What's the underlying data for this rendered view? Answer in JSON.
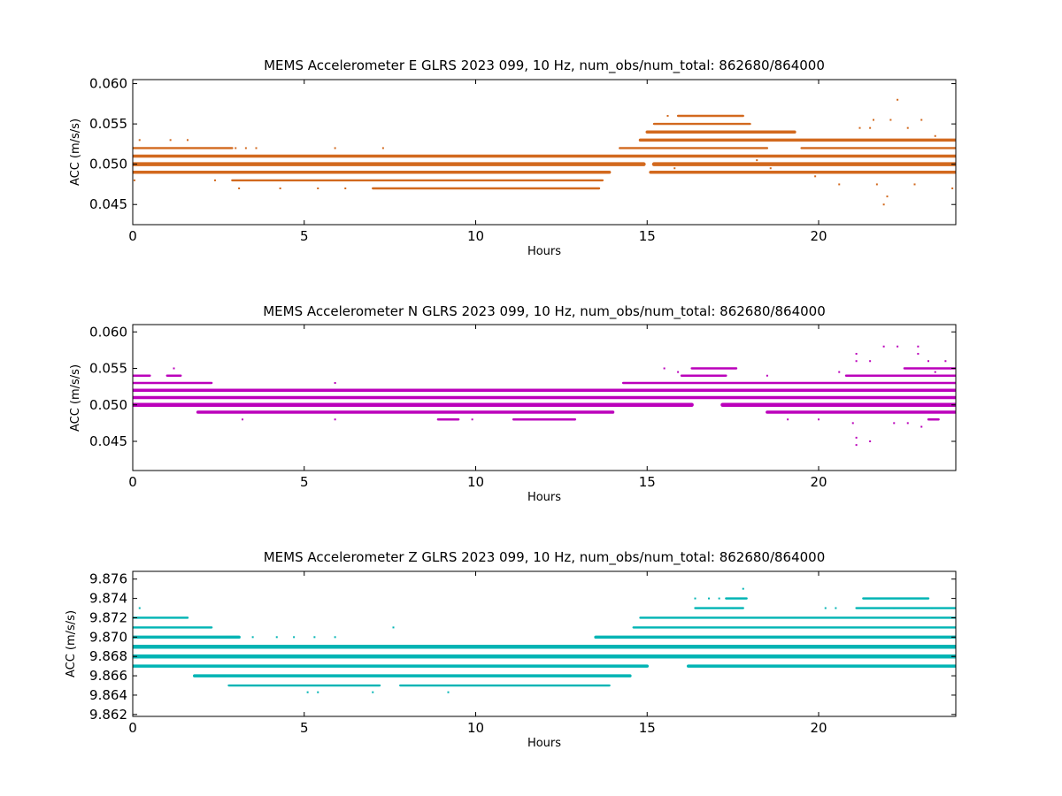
{
  "chart_data": [
    {
      "type": "scatter",
      "title": "MEMS Accelerometer E GLRS 2023 099, 10 Hz, num_obs/num_total: 862680/864000",
      "xlabel": "Hours",
      "ylabel": "ACC (m/s/s)",
      "xlim": [
        0,
        24
      ],
      "ylim": [
        0.0425,
        0.0605
      ],
      "xticks": [
        "0",
        "5",
        "10",
        "15",
        "20"
      ],
      "yticks": [
        "0.045",
        "0.050",
        "0.055",
        "0.060"
      ],
      "grid": false,
      "color": "#d2691e",
      "series": [
        {
          "bands": [
            {
              "y": 0.052,
              "segments": [
                [
                  0,
                  2.9
                ],
                [
                  14.2,
                  18.5
                ],
                [
                  19.5,
                  24
                ]
              ],
              "weight": 1
            },
            {
              "y": 0.051,
              "segments": [
                [
                  0,
                  24
                ]
              ],
              "weight": 2
            },
            {
              "y": 0.05,
              "segments": [
                [
                  0,
                  14.9
                ],
                [
                  15.2,
                  24
                ]
              ],
              "weight": 3
            },
            {
              "y": 0.049,
              "segments": [
                [
                  0,
                  13.9
                ],
                [
                  15.1,
                  24
                ]
              ],
              "weight": 2
            },
            {
              "y": 0.048,
              "segments": [
                [
                  2.9,
                  13.7
                ]
              ],
              "weight": 1
            },
            {
              "y": 0.047,
              "segments": [
                [
                  7.0,
                  13.6
                ]
              ],
              "weight": 1
            },
            {
              "y": 0.053,
              "segments": [
                [
                  14.8,
                  24
                ]
              ],
              "weight": 2
            },
            {
              "y": 0.054,
              "segments": [
                [
                  15.0,
                  19.3
                ]
              ],
              "weight": 2
            },
            {
              "y": 0.055,
              "segments": [
                [
                  15.2,
                  18.0
                ]
              ],
              "weight": 1
            },
            {
              "y": 0.056,
              "segments": [
                [
                  15.9,
                  17.8
                ]
              ],
              "weight": 1
            }
          ],
          "points": [
            [
              0.2,
              0.053
            ],
            [
              1.1,
              0.053
            ],
            [
              1.6,
              0.053
            ],
            [
              0.05,
              0.048
            ],
            [
              3.0,
              0.052
            ],
            [
              3.3,
              0.052
            ],
            [
              3.6,
              0.052
            ],
            [
              2.4,
              0.048
            ],
            [
              3.1,
              0.047
            ],
            [
              4.3,
              0.047
            ],
            [
              5.9,
              0.052
            ],
            [
              7.3,
              0.052
            ],
            [
              5.4,
              0.047
            ],
            [
              6.2,
              0.047
            ],
            [
              9.5,
              0.051
            ],
            [
              9.9,
              0.051
            ],
            [
              13.0,
              0.051
            ],
            [
              15.6,
              0.056
            ],
            [
              15.8,
              0.0495
            ],
            [
              18.2,
              0.0505
            ],
            [
              18.6,
              0.0495
            ],
            [
              19.2,
              0.051
            ],
            [
              19.9,
              0.0485
            ],
            [
              20.6,
              0.0475
            ],
            [
              21.2,
              0.0545
            ],
            [
              21.6,
              0.0555
            ],
            [
              21.9,
              0.045
            ],
            [
              22.0,
              0.046
            ],
            [
              22.3,
              0.058
            ],
            [
              22.6,
              0.0545
            ],
            [
              23.0,
              0.0555
            ],
            [
              23.4,
              0.0535
            ],
            [
              21.7,
              0.0475
            ],
            [
              22.8,
              0.0475
            ],
            [
              23.9,
              0.047
            ],
            [
              21.5,
              0.0545
            ],
            [
              22.1,
              0.0555
            ]
          ]
        }
      ]
    },
    {
      "type": "scatter",
      "title": "MEMS Accelerometer N GLRS 2023 099, 10 Hz, num_obs/num_total: 862680/864000",
      "xlabel": "Hours",
      "ylabel": "ACC (m/s/s)",
      "xlim": [
        0,
        24
      ],
      "ylim": [
        0.041,
        0.061
      ],
      "xticks": [
        "0",
        "5",
        "10",
        "15",
        "20"
      ],
      "yticks": [
        "0.045",
        "0.050",
        "0.055",
        "0.060"
      ],
      "grid": false,
      "color": "#bb00bb",
      "series": [
        {
          "bands": [
            {
              "y": 0.054,
              "segments": [
                [
                  0,
                  0.5
                ],
                [
                  1.0,
                  1.4
                ],
                [
                  16.0,
                  17.3
                ],
                [
                  20.8,
                  24
                ]
              ],
              "weight": 1
            },
            {
              "y": 0.053,
              "segments": [
                [
                  0,
                  2.3
                ],
                [
                  14.3,
                  24
                ]
              ],
              "weight": 1
            },
            {
              "y": 0.052,
              "segments": [
                [
                  0,
                  24
                ]
              ],
              "weight": 2
            },
            {
              "y": 0.051,
              "segments": [
                [
                  0,
                  24
                ]
              ],
              "weight": 2
            },
            {
              "y": 0.05,
              "segments": [
                [
                  0,
                  16.3
                ],
                [
                  17.2,
                  24
                ]
              ],
              "weight": 3
            },
            {
              "y": 0.049,
              "segments": [
                [
                  1.9,
                  14.0
                ],
                [
                  18.5,
                  24
                ]
              ],
              "weight": 2
            },
            {
              "y": 0.048,
              "segments": [
                [
                  8.9,
                  9.5
                ],
                [
                  11.1,
                  12.9
                ],
                [
                  23.2,
                  23.5
                ]
              ],
              "weight": 1
            },
            {
              "y": 0.055,
              "segments": [
                [
                  16.3,
                  17.6
                ],
                [
                  22.5,
                  24
                ]
              ],
              "weight": 1
            }
          ],
          "points": [
            [
              0.1,
              0.054
            ],
            [
              1.2,
              0.055
            ],
            [
              3.2,
              0.048
            ],
            [
              5.9,
              0.053
            ],
            [
              5.9,
              0.048
            ],
            [
              9.9,
              0.048
            ],
            [
              15.5,
              0.055
            ],
            [
              15.9,
              0.0545
            ],
            [
              18.5,
              0.054
            ],
            [
              21.1,
              0.057
            ],
            [
              21.1,
              0.056
            ],
            [
              21.1,
              0.0455
            ],
            [
              21.1,
              0.0445
            ],
            [
              21.5,
              0.045
            ],
            [
              21.5,
              0.056
            ],
            [
              21.9,
              0.058
            ],
            [
              22.3,
              0.058
            ],
            [
              22.6,
              0.0475
            ],
            [
              22.9,
              0.058
            ],
            [
              22.9,
              0.057
            ],
            [
              23.0,
              0.047
            ],
            [
              23.2,
              0.056
            ],
            [
              23.7,
              0.056
            ],
            [
              19.1,
              0.048
            ],
            [
              20.0,
              0.048
            ],
            [
              20.6,
              0.0545
            ],
            [
              21.0,
              0.0475
            ],
            [
              22.2,
              0.0475
            ],
            [
              23.4,
              0.0545
            ]
          ]
        }
      ]
    },
    {
      "type": "scatter",
      "title": "MEMS Accelerometer Z GLRS 2023 099, 10 Hz, num_obs/num_total: 862680/864000",
      "xlabel": "Hours",
      "ylabel": "ACC (m/s/s)",
      "xlim": [
        0,
        24
      ],
      "ylim": [
        9.8618,
        9.8768
      ],
      "xticks": [
        "0",
        "5",
        "10",
        "15",
        "20"
      ],
      "yticks": [
        "9.862",
        "9.864",
        "9.866",
        "9.868",
        "9.870",
        "9.872",
        "9.874",
        "9.876"
      ],
      "grid": false,
      "color": "#00b4b4",
      "series": [
        {
          "bands": [
            {
              "y": 9.872,
              "segments": [
                [
                  0,
                  1.6
                ],
                [
                  14.8,
                  24
                ]
              ],
              "weight": 1
            },
            {
              "y": 9.871,
              "segments": [
                [
                  0,
                  2.3
                ],
                [
                  14.6,
                  24
                ]
              ],
              "weight": 1
            },
            {
              "y": 9.87,
              "segments": [
                [
                  0,
                  3.1
                ],
                [
                  13.5,
                  24
                ]
              ],
              "weight": 2
            },
            {
              "y": 9.869,
              "segments": [
                [
                  0,
                  24
                ]
              ],
              "weight": 3
            },
            {
              "y": 9.868,
              "segments": [
                [
                  0,
                  24
                ]
              ],
              "weight": 3
            },
            {
              "y": 9.867,
              "segments": [
                [
                  0,
                  15.0
                ],
                [
                  16.2,
                  24
                ]
              ],
              "weight": 2
            },
            {
              "y": 9.866,
              "segments": [
                [
                  1.8,
                  14.5
                ]
              ],
              "weight": 2
            },
            {
              "y": 9.865,
              "segments": [
                [
                  2.8,
                  7.2
                ],
                [
                  7.8,
                  13.9
                ]
              ],
              "weight": 1
            },
            {
              "y": 9.873,
              "segments": [
                [
                  16.4,
                  17.8
                ],
                [
                  21.1,
                  24
                ]
              ],
              "weight": 1
            },
            {
              "y": 9.874,
              "segments": [
                [
                  17.3,
                  17.9
                ],
                [
                  21.3,
                  23.2
                ]
              ],
              "weight": 1
            }
          ],
          "points": [
            [
              0.2,
              9.873
            ],
            [
              3.5,
              9.87
            ],
            [
              4.2,
              9.87
            ],
            [
              4.7,
              9.87
            ],
            [
              5.3,
              9.87
            ],
            [
              5.9,
              9.87
            ],
            [
              7.6,
              9.871
            ],
            [
              5.1,
              9.8643
            ],
            [
              5.4,
              9.8643
            ],
            [
              7.0,
              9.8643
            ],
            [
              9.2,
              9.8643
            ],
            [
              16.4,
              9.874
            ],
            [
              16.8,
              9.874
            ],
            [
              17.1,
              9.874
            ],
            [
              17.8,
              9.875
            ],
            [
              17.5,
              9.873
            ],
            [
              18.5,
              9.872
            ],
            [
              19.3,
              9.872
            ],
            [
              20.2,
              9.873
            ],
            [
              20.5,
              9.873
            ],
            [
              22.2,
              9.873
            ],
            [
              23.3,
              9.873
            ],
            [
              23.5,
              9.867
            ],
            [
              23.8,
              9.867
            ],
            [
              23.1,
              9.867
            ]
          ]
        }
      ]
    }
  ]
}
